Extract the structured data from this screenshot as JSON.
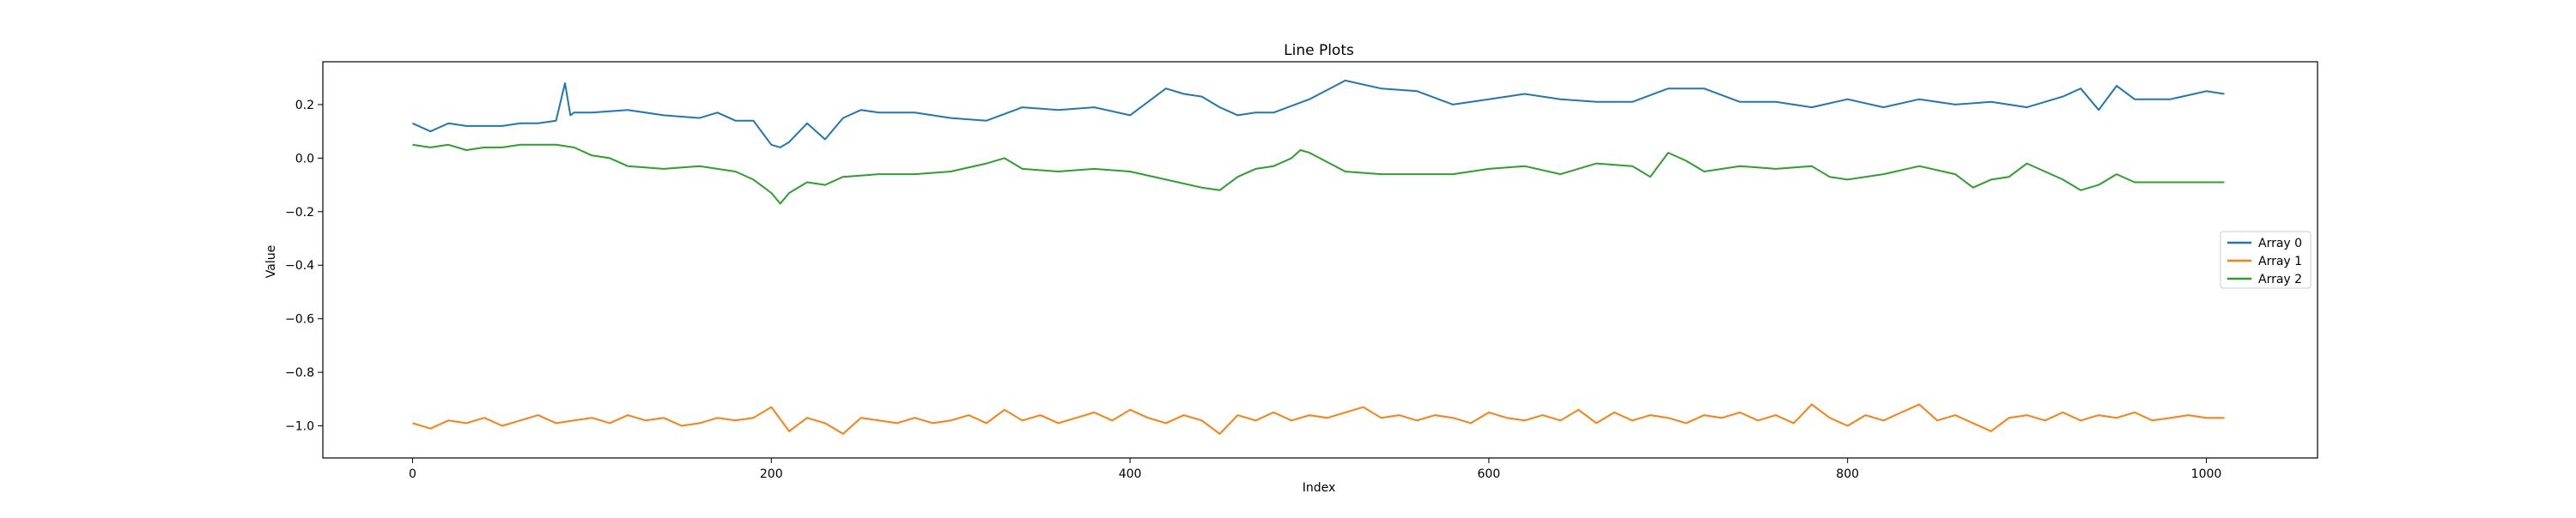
{
  "chart_data": {
    "type": "line",
    "title": "Line Plots",
    "xlabel": "Index",
    "ylabel": "Value",
    "xlim": [
      -50,
      1062
    ],
    "ylim": [
      -1.12,
      0.36
    ],
    "xticks": [
      0,
      200,
      400,
      600,
      800,
      1000
    ],
    "yticks": [
      -1.0,
      -0.8,
      -0.6,
      -0.4,
      -0.2,
      0.0,
      0.2
    ],
    "ytick_labels": [
      "−1.0",
      "−0.8",
      "−0.6",
      "−0.4",
      "−0.2",
      "0.0",
      "0.2"
    ],
    "grid": false,
    "legend_position": "center-right",
    "series": [
      {
        "name": "Array 0",
        "color": "#1f77b4",
        "x": [
          0,
          10,
          20,
          30,
          40,
          50,
          60,
          70,
          80,
          85,
          88,
          90,
          100,
          120,
          140,
          160,
          170,
          180,
          190,
          200,
          205,
          210,
          220,
          230,
          240,
          250,
          260,
          280,
          300,
          320,
          340,
          360,
          380,
          400,
          420,
          430,
          440,
          450,
          460,
          470,
          480,
          500,
          520,
          540,
          560,
          580,
          600,
          620,
          640,
          660,
          680,
          700,
          720,
          740,
          760,
          780,
          800,
          820,
          840,
          860,
          880,
          900,
          920,
          930,
          940,
          950,
          960,
          980,
          1000,
          1010
        ],
        "y": [
          0.13,
          0.1,
          0.13,
          0.12,
          0.12,
          0.12,
          0.13,
          0.13,
          0.14,
          0.28,
          0.16,
          0.17,
          0.17,
          0.18,
          0.16,
          0.15,
          0.17,
          0.14,
          0.14,
          0.05,
          0.04,
          0.06,
          0.13,
          0.07,
          0.15,
          0.18,
          0.17,
          0.17,
          0.15,
          0.14,
          0.19,
          0.18,
          0.19,
          0.16,
          0.26,
          0.24,
          0.23,
          0.19,
          0.16,
          0.17,
          0.17,
          0.22,
          0.29,
          0.26,
          0.25,
          0.2,
          0.22,
          0.24,
          0.22,
          0.21,
          0.21,
          0.26,
          0.26,
          0.21,
          0.21,
          0.19,
          0.22,
          0.19,
          0.22,
          0.2,
          0.21,
          0.19,
          0.23,
          0.26,
          0.18,
          0.27,
          0.22,
          0.22,
          0.25,
          0.24
        ]
      },
      {
        "name": "Array 1",
        "color": "#ff7f0e",
        "x": [
          0,
          10,
          20,
          30,
          40,
          50,
          60,
          70,
          80,
          90,
          100,
          110,
          120,
          130,
          140,
          150,
          160,
          170,
          180,
          190,
          200,
          210,
          220,
          230,
          240,
          250,
          260,
          270,
          280,
          290,
          300,
          310,
          320,
          330,
          340,
          350,
          360,
          370,
          380,
          390,
          400,
          410,
          420,
          430,
          440,
          450,
          460,
          470,
          480,
          490,
          500,
          510,
          520,
          530,
          540,
          550,
          560,
          570,
          580,
          590,
          600,
          610,
          620,
          630,
          640,
          650,
          660,
          670,
          680,
          690,
          700,
          710,
          720,
          730,
          740,
          750,
          760,
          770,
          780,
          790,
          800,
          810,
          820,
          830,
          840,
          850,
          860,
          870,
          880,
          890,
          900,
          910,
          920,
          930,
          940,
          950,
          960,
          970,
          980,
          990,
          1000,
          1010
        ],
        "y": [
          -0.99,
          -1.01,
          -0.98,
          -0.99,
          -0.97,
          -1.0,
          -0.98,
          -0.96,
          -0.99,
          -0.98,
          -0.97,
          -0.99,
          -0.96,
          -0.98,
          -0.97,
          -1.0,
          -0.99,
          -0.97,
          -0.98,
          -0.97,
          -0.93,
          -1.02,
          -0.97,
          -0.99,
          -1.03,
          -0.97,
          -0.98,
          -0.99,
          -0.97,
          -0.99,
          -0.98,
          -0.96,
          -0.99,
          -0.94,
          -0.98,
          -0.96,
          -0.99,
          -0.97,
          -0.95,
          -0.98,
          -0.94,
          -0.97,
          -0.99,
          -0.96,
          -0.98,
          -1.03,
          -0.96,
          -0.98,
          -0.95,
          -0.98,
          -0.96,
          -0.97,
          -0.95,
          -0.93,
          -0.97,
          -0.96,
          -0.98,
          -0.96,
          -0.97,
          -0.99,
          -0.95,
          -0.97,
          -0.98,
          -0.96,
          -0.98,
          -0.94,
          -0.99,
          -0.95,
          -0.98,
          -0.96,
          -0.97,
          -0.99,
          -0.96,
          -0.97,
          -0.95,
          -0.98,
          -0.96,
          -0.99,
          -0.92,
          -0.97,
          -1.0,
          -0.96,
          -0.98,
          -0.95,
          -0.92,
          -0.98,
          -0.96,
          -0.99,
          -1.02,
          -0.97,
          -0.96,
          -0.98,
          -0.95,
          -0.98,
          -0.96,
          -0.97,
          -0.95,
          -0.98,
          -0.97,
          -0.96,
          -0.97,
          -0.97
        ]
      },
      {
        "name": "Array 2",
        "color": "#2ca02c",
        "x": [
          0,
          10,
          20,
          30,
          40,
          50,
          60,
          70,
          80,
          90,
          100,
          110,
          120,
          140,
          160,
          180,
          190,
          200,
          205,
          210,
          220,
          230,
          240,
          260,
          280,
          300,
          320,
          330,
          340,
          360,
          380,
          400,
          420,
          440,
          450,
          460,
          470,
          480,
          490,
          495,
          500,
          520,
          540,
          560,
          580,
          600,
          620,
          640,
          660,
          680,
          690,
          700,
          710,
          720,
          740,
          760,
          780,
          790,
          800,
          820,
          840,
          860,
          870,
          880,
          890,
          900,
          910,
          920,
          930,
          940,
          950,
          960,
          980,
          1000,
          1010
        ],
        "y": [
          0.05,
          0.04,
          0.05,
          0.03,
          0.04,
          0.04,
          0.05,
          0.05,
          0.05,
          0.04,
          0.01,
          0.0,
          -0.03,
          -0.04,
          -0.03,
          -0.05,
          -0.08,
          -0.13,
          -0.17,
          -0.13,
          -0.09,
          -0.1,
          -0.07,
          -0.06,
          -0.06,
          -0.05,
          -0.02,
          0.0,
          -0.04,
          -0.05,
          -0.04,
          -0.05,
          -0.08,
          -0.11,
          -0.12,
          -0.07,
          -0.04,
          -0.03,
          0.0,
          0.03,
          0.02,
          -0.05,
          -0.06,
          -0.06,
          -0.06,
          -0.04,
          -0.03,
          -0.06,
          -0.02,
          -0.03,
          -0.07,
          0.02,
          -0.01,
          -0.05,
          -0.03,
          -0.04,
          -0.03,
          -0.07,
          -0.08,
          -0.06,
          -0.03,
          -0.06,
          -0.11,
          -0.08,
          -0.07,
          -0.02,
          -0.05,
          -0.08,
          -0.12,
          -0.1,
          -0.06,
          -0.09,
          -0.09,
          -0.09,
          -0.09
        ]
      }
    ]
  }
}
